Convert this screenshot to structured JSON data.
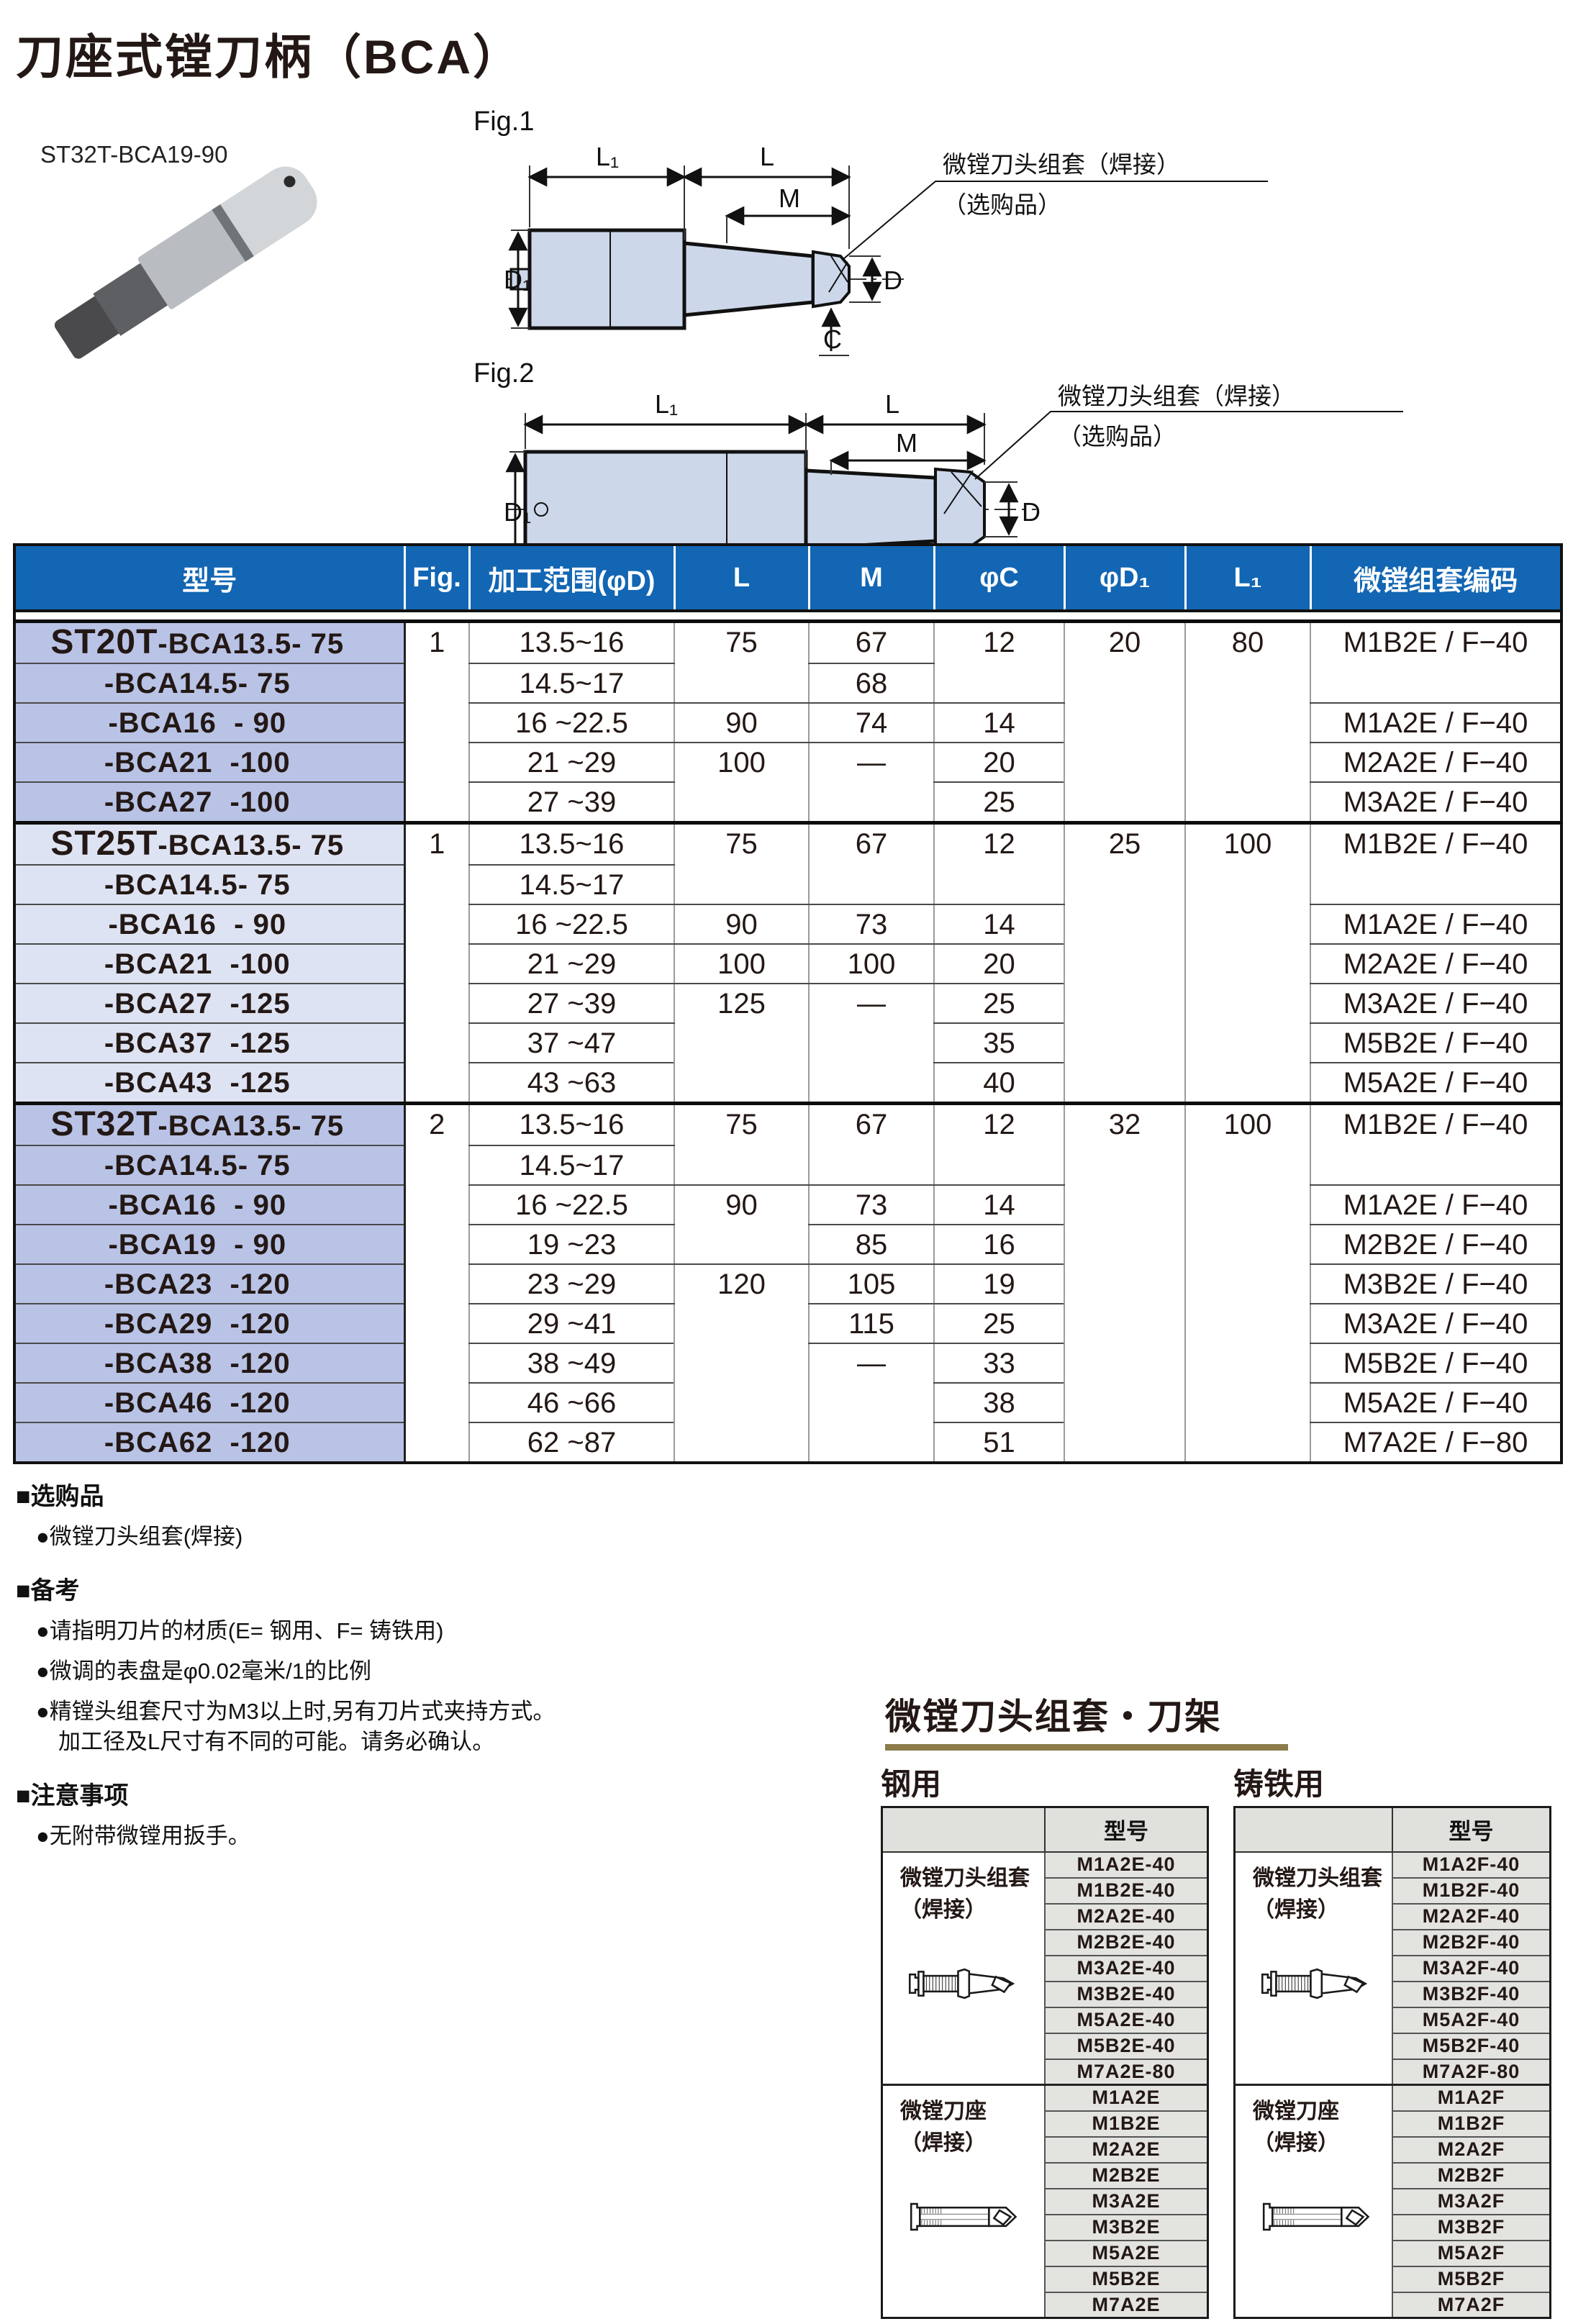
{
  "page": {
    "title": "刀座式镗刀柄（BCA）",
    "product_label": "ST32T-BCA19-90"
  },
  "figures": {
    "fig1_label": "Fig.1",
    "fig2_label": "Fig.2",
    "callout_line1": "微镗刀头组套（焊接）",
    "callout_line2": "（选购品）",
    "dims": {
      "l1": "L₁",
      "l": "L",
      "m": "M",
      "d1": "D₁",
      "d": "D",
      "c": "C"
    }
  },
  "main_table": {
    "headers": [
      "型号",
      "Fig.",
      "加工范围(φD)",
      "L",
      "M",
      "φC",
      "φD₁",
      "L₁",
      "微镗组套编码"
    ],
    "groups": [
      {
        "prefix": "ST20T",
        "shade": "A",
        "rows": [
          {
            "model_prefix": "ST20T",
            "model": "-BCA13.5- 75",
            "fig": {
              "t": "1",
              "rs": 5
            },
            "range": "13.5~16",
            "L": {
              "t": "75",
              "rs": 2
            },
            "M": "67",
            "C": {
              "t": "12",
              "rs": 2
            },
            "D1": {
              "t": "20",
              "rs": 5
            },
            "L1": {
              "t": "80",
              "rs": 5
            },
            "code": {
              "t": "M1B2E / F−40",
              "rs": 2
            }
          },
          {
            "model": "-BCA14.5- 75",
            "range": "14.5~17",
            "M": "68"
          },
          {
            "model": "-BCA16  - 90",
            "range": "16 ~22.5",
            "L": "90",
            "M": "74",
            "C": "14",
            "code": "M1A2E / F−40"
          },
          {
            "model": "-BCA21  -100",
            "range": "21 ~29",
            "L": {
              "t": "100",
              "rs": 2
            },
            "M": {
              "t": "—",
              "rs": 2
            },
            "C": "20",
            "code": "M2A2E / F−40"
          },
          {
            "model": "-BCA27  -100",
            "range": "27 ~39",
            "C": "25",
            "code": "M3A2E / F−40"
          }
        ]
      },
      {
        "prefix": "ST25T",
        "shade": "B",
        "rows": [
          {
            "model_prefix": "ST25T",
            "model": "-BCA13.5- 75",
            "fig": {
              "t": "1",
              "rs": 7
            },
            "range": "13.5~16",
            "L": {
              "t": "75",
              "rs": 2
            },
            "M": {
              "t": "67",
              "rs": 2
            },
            "C": {
              "t": "12",
              "rs": 2
            },
            "D1": {
              "t": "25",
              "rs": 7
            },
            "L1": {
              "t": "100",
              "rs": 7
            },
            "code": {
              "t": "M1B2E / F−40",
              "rs": 2
            }
          },
          {
            "model": "-BCA14.5- 75",
            "range": "14.5~17"
          },
          {
            "model": "-BCA16  - 90",
            "range": "16 ~22.5",
            "L": "90",
            "M": "73",
            "C": "14",
            "code": "M1A2E / F−40"
          },
          {
            "model": "-BCA21  -100",
            "range": "21 ~29",
            "L": "100",
            "M": "100",
            "C": "20",
            "code": "M2A2E / F−40"
          },
          {
            "model": "-BCA27  -125",
            "range": "27 ~39",
            "L": {
              "t": "125",
              "rs": 3
            },
            "M": {
              "t": "—",
              "rs": 3
            },
            "C": "25",
            "code": "M3A2E / F−40"
          },
          {
            "model": "-BCA37  -125",
            "range": "37 ~47",
            "C": "35",
            "code": "M5B2E / F−40"
          },
          {
            "model": "-BCA43  -125",
            "range": "43 ~63",
            "C": "40",
            "code": "M5A2E / F−40"
          }
        ]
      },
      {
        "prefix": "ST32T",
        "shade": "A",
        "rows": [
          {
            "model_prefix": "ST32T",
            "model": "-BCA13.5- 75",
            "fig": {
              "t": "2",
              "rs": 9
            },
            "range": "13.5~16",
            "L": {
              "t": "75",
              "rs": 2
            },
            "M": {
              "t": "67",
              "rs": 2
            },
            "C": {
              "t": "12",
              "rs": 2
            },
            "D1": {
              "t": "32",
              "rs": 9
            },
            "L1": {
              "t": "100",
              "rs": 9
            },
            "code": {
              "t": "M1B2E / F−40",
              "rs": 2
            }
          },
          {
            "model": "-BCA14.5- 75",
            "range": "14.5~17"
          },
          {
            "model": "-BCA16  - 90",
            "range": "16 ~22.5",
            "L": {
              "t": "90",
              "rs": 2
            },
            "M": "73",
            "C": "14",
            "code": "M1A2E / F−40"
          },
          {
            "model": "-BCA19  - 90",
            "range": "19 ~23",
            "M": "85",
            "C": "16",
            "code": "M2B2E / F−40"
          },
          {
            "model": "-BCA23  -120",
            "range": "23 ~29",
            "L": {
              "t": "120",
              "rs": 5
            },
            "M": "105",
            "C": "19",
            "code": "M3B2E / F−40"
          },
          {
            "model": "-BCA29  -120",
            "range": "29 ~41",
            "M": "115",
            "C": "25",
            "code": "M3A2E / F−40"
          },
          {
            "model": "-BCA38  -120",
            "range": "38 ~49",
            "M": {
              "t": "—",
              "rs": 3
            },
            "C": "33",
            "code": "M5B2E / F−40"
          },
          {
            "model": "-BCA46  -120",
            "range": "46 ~66",
            "C": "38",
            "code": "M5A2E / F−40"
          },
          {
            "model": "-BCA62  -120",
            "range": "62 ~87",
            "C": "51",
            "code": "M7A2E / F−80"
          }
        ]
      }
    ]
  },
  "notes": {
    "sections": [
      {
        "heading": "■选购品",
        "items": [
          "●微镗刀头组套(焊接)"
        ]
      },
      {
        "heading": "■备考",
        "items": [
          "●请指明刀片的材质(E= 钢用、F= 铸铁用)",
          "●微调的表盘是φ0.02毫米/1的比例",
          "●精镗头组套尺寸为M3以上时,另有刀片式夹持方式。\n　加工径及L尺寸有不同的可能。请务必确认。"
        ]
      },
      {
        "heading": "■注意事项",
        "items": [
          "●无附带微镗用扳手。"
        ]
      }
    ]
  },
  "accessory_section": {
    "title": "微镗刀头组套・刀架",
    "tables": [
      {
        "usage": "钢用",
        "col_header": "型号",
        "groups": [
          {
            "label": "微镗刀头组套",
            "label2": "（焊接）",
            "icon": "boring-head-icon",
            "models": [
              "M1A2E-40",
              "M1B2E-40",
              "M2A2E-40",
              "M2B2E-40",
              "M3A2E-40",
              "M3B2E-40",
              "M5A2E-40",
              "M5B2E-40",
              "M7A2E-80"
            ]
          },
          {
            "label": "微镗刀座",
            "label2": "（焊接）",
            "icon": "cartridge-icon",
            "models": [
              "M1A2E",
              "M1B2E",
              "M2A2E",
              "M2B2E",
              "M3A2E",
              "M3B2E",
              "M5A2E",
              "M5B2E",
              "M7A2E"
            ]
          }
        ]
      },
      {
        "usage": "铸铁用",
        "col_header": "型号",
        "groups": [
          {
            "label": "微镗刀头组套",
            "label2": "（焊接）",
            "icon": "boring-head-icon",
            "models": [
              "M1A2F-40",
              "M1B2F-40",
              "M2A2F-40",
              "M2B2F-40",
              "M3A2F-40",
              "M3B2F-40",
              "M5A2F-40",
              "M5B2F-40",
              "M7A2F-80"
            ]
          },
          {
            "label": "微镗刀座",
            "label2": "（焊接）",
            "icon": "cartridge-icon",
            "models": [
              "M1A2F",
              "M1B2F",
              "M2A2F",
              "M2B2F",
              "M3A2F",
              "M3B2F",
              "M5A2F",
              "M5B2F",
              "M7A2F"
            ]
          }
        ]
      }
    ]
  }
}
